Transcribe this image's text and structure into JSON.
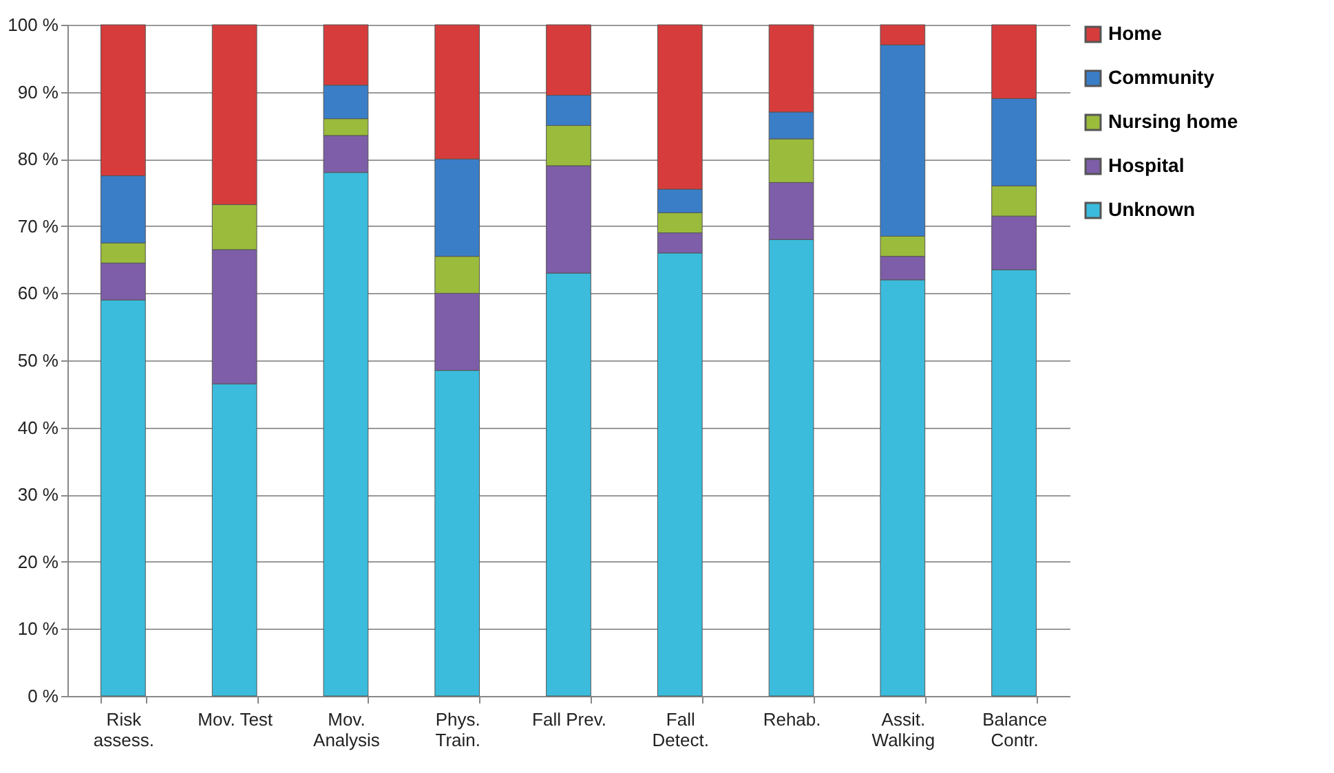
{
  "chart_data": {
    "type": "bar",
    "stacked": true,
    "categories": [
      "Risk assess.",
      "Mov. Test",
      "Mov. Analysis",
      "Phys. Train.",
      "Fall Prev.",
      "Fall Detect.",
      "Rehab.",
      "Assit. Walking",
      "Balance Contr."
    ],
    "series": [
      {
        "name": "Unknown",
        "color": "#3bbcdc",
        "values": [
          59,
          46.5,
          78,
          48.5,
          63,
          66,
          68,
          62,
          63.5
        ]
      },
      {
        "name": "Hospital",
        "color": "#7e5ea8",
        "values": [
          5.5,
          20,
          5.5,
          11.5,
          16,
          3,
          8.5,
          3.5,
          8
        ]
      },
      {
        "name": "Nursing home",
        "color": "#9bbb3c",
        "values": [
          3,
          6.7,
          2.5,
          5.5,
          6,
          3,
          6.5,
          3,
          4.5
        ]
      },
      {
        "name": "Community",
        "color": "#3a7ec8",
        "values": [
          10,
          0,
          5,
          14.5,
          4.5,
          3.5,
          4,
          28.5,
          13
        ]
      },
      {
        "name": "Home",
        "color": "#d63c3c",
        "values": [
          22.5,
          26.8,
          9,
          20,
          10.5,
          24.5,
          13,
          3,
          11
        ]
      }
    ],
    "ylim": [
      0,
      100
    ],
    "yticks": [
      {
        "value": 0,
        "label": "0 %"
      },
      {
        "value": 10,
        "label": "10 %"
      },
      {
        "value": 20,
        "label": "20 %"
      },
      {
        "value": 30,
        "label": "30 %"
      },
      {
        "value": 40,
        "label": "40 %"
      },
      {
        "value": 50,
        "label": "50 %"
      },
      {
        "value": 60,
        "label": "60 %"
      },
      {
        "value": 70,
        "label": "70 %"
      },
      {
        "value": 80,
        "label": "80 %"
      },
      {
        "value": 90,
        "label": "90 %"
      },
      {
        "value": 100,
        "label": "100 %"
      }
    ],
    "grid": "y",
    "legend": "right"
  }
}
